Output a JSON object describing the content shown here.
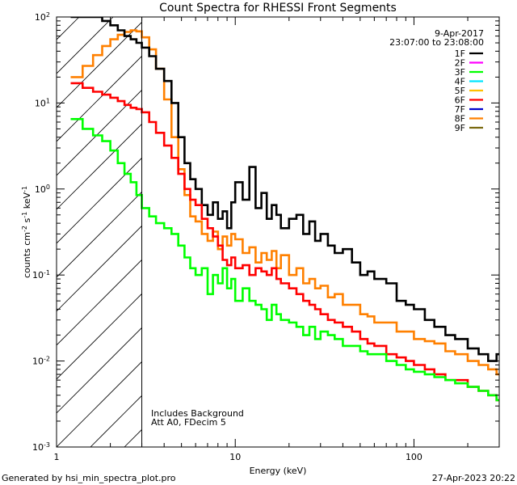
{
  "chart_data": {
    "type": "line",
    "title": "Count Spectra for RHESSI Front Segments",
    "xlabel": "Energy (keV)",
    "ylabel": "counts cm",
    "ylabel_sup1": "-2",
    "ylabel_mid": " s",
    "ylabel_sup2": "-1",
    "ylabel_end": " keV",
    "ylabel_sup3": "-1",
    "xscale": "log",
    "yscale": "log",
    "xlim": [
      1,
      300
    ],
    "ylim": [
      0.001,
      100
    ],
    "x_tick_labels": [
      {
        "value": 1,
        "label": "1"
      },
      {
        "value": 10,
        "label": "10"
      },
      {
        "value": 100,
        "label": "100"
      }
    ],
    "y_tick_labels": [
      {
        "value": 0.001,
        "base": "10",
        "exp": "-3"
      },
      {
        "value": 0.01,
        "base": "10",
        "exp": "-2"
      },
      {
        "value": 0.1,
        "base": "10",
        "exp": "-1"
      },
      {
        "value": 1,
        "base": "10",
        "exp": "0"
      },
      {
        "value": 10,
        "base": "10",
        "exp": "1"
      },
      {
        "value": 100,
        "base": "10",
        "exp": "2"
      }
    ],
    "date": "9-Apr-2017",
    "time_range": "23:07:00 to 23:08:00",
    "threshold_energy": 3,
    "annotations": [
      "Includes Background",
      "Att A0, FDecim 5"
    ],
    "legend": [
      {
        "label": "1F",
        "color": "#000000"
      },
      {
        "label": "2F",
        "color": "#ff00ff"
      },
      {
        "label": "3F",
        "color": "#00ff00"
      },
      {
        "label": "4F",
        "color": "#00e5ff"
      },
      {
        "label": "5F",
        "color": "#ffc000"
      },
      {
        "label": "6F",
        "color": "#ff0000"
      },
      {
        "label": "7F",
        "color": "#0000cc"
      },
      {
        "label": "8F",
        "color": "#ff8000"
      },
      {
        "label": "9F",
        "color": "#7a6a10"
      }
    ],
    "series": [
      {
        "name": "8F",
        "color": "#ff8000",
        "x": [
          1.2,
          1.4,
          1.6,
          1.8,
          2.0,
          2.2,
          2.4,
          2.6,
          2.8,
          3.0,
          3.3,
          3.6,
          4.0,
          4.4,
          4.8,
          5.2,
          5.6,
          6.0,
          6.5,
          7.0,
          7.5,
          8.0,
          8.5,
          9.0,
          9.5,
          10,
          11,
          12,
          13,
          14,
          15,
          16,
          17,
          18,
          20,
          22,
          24,
          26,
          28,
          30,
          33,
          36,
          40,
          45,
          50,
          55,
          60,
          70,
          80,
          90,
          100,
          115,
          130,
          150,
          170,
          200,
          230,
          260,
          290
        ],
        "y": [
          20,
          27,
          36,
          46,
          55,
          62,
          67,
          70,
          68,
          58,
          42,
          25,
          11,
          4.0,
          1.7,
          0.85,
          0.48,
          0.42,
          0.3,
          0.25,
          0.32,
          0.2,
          0.28,
          0.22,
          0.3,
          0.26,
          0.18,
          0.21,
          0.14,
          0.18,
          0.15,
          0.19,
          0.12,
          0.17,
          0.1,
          0.12,
          0.08,
          0.09,
          0.07,
          0.075,
          0.055,
          0.06,
          0.045,
          0.045,
          0.035,
          0.033,
          0.028,
          0.028,
          0.022,
          0.022,
          0.018,
          0.017,
          0.016,
          0.013,
          0.012,
          0.01,
          0.009,
          0.008,
          0.007
        ]
      },
      {
        "name": "1F",
        "color": "#000000",
        "x": [
          1.2,
          1.4,
          1.6,
          1.8,
          2.0,
          2.2,
          2.4,
          2.6,
          2.8,
          3.0,
          3.3,
          3.6,
          4.0,
          4.4,
          4.8,
          5.2,
          5.6,
          6.0,
          6.5,
          7.0,
          7.5,
          8.0,
          8.5,
          9.0,
          9.5,
          10,
          11,
          12,
          13,
          14,
          15,
          16,
          17,
          18,
          20,
          22,
          24,
          26,
          28,
          30,
          33,
          36,
          40,
          45,
          50,
          55,
          60,
          70,
          80,
          90,
          100,
          115,
          130,
          150,
          170,
          200,
          230,
          260,
          290
        ],
        "y": [
          100,
          100,
          100,
          90,
          80,
          70,
          60,
          55,
          50,
          44,
          35,
          25,
          18,
          10,
          4.0,
          2.0,
          1.3,
          1.0,
          0.65,
          0.5,
          0.7,
          0.45,
          0.55,
          0.35,
          0.7,
          1.2,
          0.75,
          1.8,
          0.6,
          0.9,
          0.45,
          0.65,
          0.5,
          0.35,
          0.45,
          0.5,
          0.3,
          0.42,
          0.25,
          0.3,
          0.22,
          0.18,
          0.2,
          0.14,
          0.1,
          0.11,
          0.09,
          0.08,
          0.05,
          0.045,
          0.04,
          0.03,
          0.025,
          0.02,
          0.018,
          0.014,
          0.012,
          0.01,
          0.012
        ]
      },
      {
        "name": "6F",
        "color": "#ff0000",
        "x": [
          1.2,
          1.4,
          1.6,
          1.8,
          2.0,
          2.2,
          2.4,
          2.6,
          2.8,
          3.0,
          3.3,
          3.6,
          4.0,
          4.4,
          4.8,
          5.2,
          5.6,
          6.0,
          6.5,
          7.0,
          7.5,
          8.0,
          8.5,
          9.0,
          9.5,
          10,
          11,
          12,
          13,
          14,
          15,
          16,
          17,
          18,
          20,
          22,
          24,
          26,
          28,
          30,
          33,
          36,
          40,
          45,
          50,
          55,
          60,
          70,
          80,
          90,
          100,
          115,
          130,
          150,
          170,
          200,
          230,
          260,
          290
        ],
        "y": [
          17,
          15,
          13.5,
          12.5,
          11.5,
          10.5,
          9.5,
          8.8,
          8.5,
          7.8,
          6.0,
          4.5,
          3.2,
          2.3,
          1.5,
          1.0,
          0.75,
          0.65,
          0.45,
          0.35,
          0.28,
          0.22,
          0.15,
          0.13,
          0.16,
          0.12,
          0.13,
          0.1,
          0.12,
          0.11,
          0.1,
          0.12,
          0.09,
          0.08,
          0.07,
          0.06,
          0.05,
          0.045,
          0.04,
          0.035,
          0.03,
          0.028,
          0.025,
          0.022,
          0.018,
          0.016,
          0.015,
          0.012,
          0.011,
          0.01,
          0.009,
          0.008,
          0.007,
          0.006,
          0.006,
          0.005,
          0.0045,
          0.004,
          0.0035
        ]
      },
      {
        "name": "3F",
        "color": "#00ff00",
        "x": [
          1.2,
          1.4,
          1.6,
          1.8,
          2.0,
          2.2,
          2.4,
          2.6,
          2.8,
          3.0,
          3.3,
          3.6,
          4.0,
          4.4,
          4.8,
          5.2,
          5.6,
          6.0,
          6.5,
          7.0,
          7.5,
          8.0,
          8.5,
          9.0,
          9.5,
          10,
          11,
          12,
          13,
          14,
          15,
          16,
          17,
          18,
          20,
          22,
          24,
          26,
          28,
          30,
          33,
          36,
          40,
          45,
          50,
          55,
          60,
          70,
          80,
          90,
          100,
          115,
          130,
          150,
          170,
          200,
          230,
          260,
          290
        ],
        "y": [
          6.5,
          5.0,
          4.2,
          3.6,
          2.8,
          2.0,
          1.5,
          1.2,
          0.85,
          0.6,
          0.48,
          0.4,
          0.35,
          0.3,
          0.22,
          0.16,
          0.12,
          0.1,
          0.12,
          0.06,
          0.1,
          0.08,
          0.12,
          0.07,
          0.09,
          0.05,
          0.07,
          0.05,
          0.045,
          0.04,
          0.03,
          0.045,
          0.035,
          0.03,
          0.028,
          0.025,
          0.02,
          0.025,
          0.018,
          0.022,
          0.02,
          0.018,
          0.015,
          0.015,
          0.013,
          0.012,
          0.012,
          0.01,
          0.009,
          0.008,
          0.0075,
          0.007,
          0.0065,
          0.006,
          0.0055,
          0.005,
          0.0045,
          0.004,
          0.0035
        ]
      }
    ]
  },
  "footer": {
    "left": "Generated by hsi_min_spectra_plot.pro",
    "right": "27-Apr-2023 20:22"
  }
}
